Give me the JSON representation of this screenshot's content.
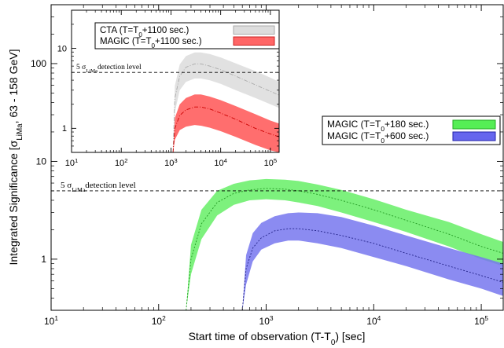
{
  "chart_data": [
    {
      "type": "area",
      "role": "main",
      "xlabel_main": "Start time of observation (T-T",
      "xlabel_sub": "0",
      "xlabel_tail": ") [sec]",
      "ylabel_main": "Integrated Significance [σ",
      "ylabel_sub": "LiMa",
      "ylabel_tail": ", 63 - 158 GeV]",
      "xscale": "log",
      "yscale": "log",
      "xlim": [
        10,
        160000
      ],
      "ylim": [
        0.3,
        400
      ],
      "x_ticks": [
        {
          "v": 10,
          "m": "10",
          "e": "1"
        },
        {
          "v": 100,
          "m": "10",
          "e": "2"
        },
        {
          "v": 1000,
          "m": "10",
          "e": "3"
        },
        {
          "v": 10000,
          "m": "10",
          "e": "4"
        },
        {
          "v": 100000,
          "m": "10",
          "e": "5"
        }
      ],
      "y_ticks": [
        {
          "v": 1,
          "label": "1"
        },
        {
          "v": 10,
          "label": "10"
        },
        {
          "v": 100,
          "label": "100"
        }
      ],
      "threshold": {
        "value": 5,
        "label_pre": "5 σ",
        "label_sub": "LiMa",
        "label_post": "detection level"
      },
      "legend": {
        "placement": "right",
        "entries": [
          {
            "pre": "MAGIC (T=T",
            "sub": "0",
            "post": "+180 sec.)",
            "color": "#55ee55",
            "border": "#22aa22"
          },
          {
            "pre": "MAGIC (T=T",
            "sub": "0",
            "post": "+600 sec.)",
            "color": "#6666ee",
            "border": "#2222aa"
          }
        ]
      },
      "series": [
        {
          "color_fill": "#66ee66",
          "color_line": "#229922",
          "x": [
            180,
            200,
            250,
            350,
            500,
            700,
            1000,
            1500,
            2000,
            3000,
            5000,
            10000,
            20000,
            50000,
            100000,
            160000
          ],
          "low": [
            0.3,
            0.7,
            1.6,
            2.8,
            3.6,
            4.0,
            4.1,
            4.0,
            3.8,
            3.5,
            3.0,
            2.4,
            1.9,
            1.35,
            1.0,
            0.85
          ],
          "mid": [
            0.3,
            1.0,
            2.3,
            3.8,
            4.7,
            5.1,
            5.3,
            5.2,
            5.0,
            4.6,
            4.0,
            3.2,
            2.5,
            1.8,
            1.35,
            1.15
          ],
          "high": [
            0.3,
            1.4,
            3.2,
            5.0,
            5.9,
            6.4,
            6.6,
            6.5,
            6.3,
            5.8,
            5.1,
            4.1,
            3.2,
            2.4,
            1.8,
            1.5
          ]
        },
        {
          "color_fill": "#7777ee",
          "color_line": "#222288",
          "x": [
            600,
            650,
            750,
            900,
            1200,
            1600,
            2000,
            3000,
            5000,
            10000,
            20000,
            50000,
            100000,
            160000
          ],
          "low": [
            0.3,
            0.55,
            0.95,
            1.25,
            1.45,
            1.55,
            1.55,
            1.45,
            1.3,
            1.05,
            0.85,
            0.62,
            0.5,
            0.42
          ],
          "mid": [
            0.3,
            0.8,
            1.3,
            1.65,
            1.95,
            2.05,
            2.05,
            1.95,
            1.75,
            1.45,
            1.15,
            0.85,
            0.68,
            0.58
          ],
          "high": [
            0.3,
            1.1,
            1.85,
            2.35,
            2.75,
            2.95,
            3.0,
            2.95,
            2.7,
            2.2,
            1.75,
            1.3,
            1.05,
            0.9
          ]
        }
      ]
    },
    {
      "type": "area",
      "role": "inset",
      "xscale": "log",
      "yscale": "log",
      "xlim": [
        10,
        150000
      ],
      "ylim": [
        0.5,
        30
      ],
      "x_ticks": [
        {
          "v": 10,
          "m": "10",
          "e": "1"
        },
        {
          "v": 100,
          "m": "10",
          "e": "2"
        },
        {
          "v": 1000,
          "m": "10",
          "e": "3"
        },
        {
          "v": 10000,
          "m": "10",
          "e": "4"
        },
        {
          "v": 100000,
          "m": "10",
          "e": "5"
        }
      ],
      "y_ticks": [
        {
          "v": 1,
          "label": "1"
        },
        {
          "v": 10,
          "label": "10"
        }
      ],
      "threshold": {
        "value": 5,
        "label_pre": "5 σ",
        "label_sub": "LiMa",
        "label_post": "detection level"
      },
      "legend": {
        "placement": "top-right",
        "entries": [
          {
            "pre": "CTA (T=T",
            "sub": "0",
            "post": "+1100 sec.)",
            "color": "#dddddd",
            "border": "#aaaaaa"
          },
          {
            "pre": "MAGIC (T=T",
            "sub": "0",
            "post": "+1100 sec.)",
            "color": "#ff6666",
            "border": "#cc2222"
          }
        ]
      },
      "series": [
        {
          "color_fill": "#dcdcdc",
          "color_line": "#aaaaaa",
          "x": [
            1100,
            1200,
            1500,
            2000,
            3000,
            4000,
            6000,
            10000,
            20000,
            50000,
            100000,
            150000
          ],
          "low": [
            0.5,
            1.6,
            3.0,
            3.8,
            4.2,
            4.2,
            4.0,
            3.6,
            3.0,
            2.4,
            2.0,
            1.8
          ],
          "mid": [
            0.5,
            2.4,
            4.5,
            5.8,
            6.4,
            6.4,
            6.0,
            5.4,
            4.5,
            3.5,
            2.9,
            2.6
          ],
          "high": [
            0.5,
            3.4,
            6.3,
            8.0,
            8.9,
            8.9,
            8.5,
            7.7,
            6.5,
            5.2,
            4.3,
            3.8
          ]
        },
        {
          "color_fill": "#ff5555",
          "color_line": "#cc0000",
          "x": [
            1100,
            1200,
            1500,
            2000,
            3000,
            4000,
            6000,
            10000,
            20000,
            50000,
            100000,
            150000
          ],
          "low": [
            0.5,
            0.72,
            0.95,
            1.05,
            1.1,
            1.08,
            1.02,
            0.92,
            0.78,
            0.62,
            0.53,
            0.5
          ],
          "mid": [
            0.5,
            1.0,
            1.45,
            1.7,
            1.85,
            1.85,
            1.75,
            1.55,
            1.3,
            1.0,
            0.85,
            0.78
          ],
          "high": [
            0.5,
            1.35,
            2.0,
            2.4,
            2.65,
            2.65,
            2.5,
            2.25,
            1.9,
            1.5,
            1.25,
            1.15
          ]
        }
      ]
    }
  ]
}
